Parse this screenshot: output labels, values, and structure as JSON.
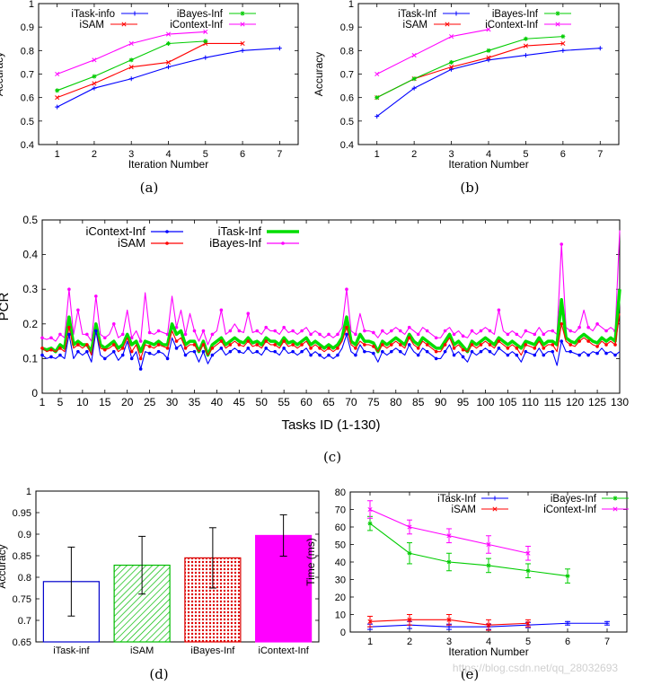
{
  "watermark": "https://blog.csdn.net/qq_28032693",
  "chart_data": [
    {
      "id": "a",
      "type": "line",
      "caption": "(a)",
      "xlabel": "Iteration Number",
      "ylabel": "Accuracy",
      "xlim": [
        0.5,
        7.5
      ],
      "ylim": [
        0.4,
        1.0
      ],
      "xticks": [
        1,
        2,
        3,
        4,
        5,
        6,
        7
      ],
      "yticks": [
        0.4,
        0.5,
        0.6,
        0.7,
        0.8,
        0.9,
        1
      ],
      "series": [
        {
          "name": "iTask-info",
          "color": "#0000ff",
          "x": [
            1,
            2,
            3,
            4,
            5,
            6,
            7
          ],
          "values": [
            0.56,
            0.64,
            0.68,
            0.73,
            0.77,
            0.8,
            0.81
          ]
        },
        {
          "name": "iSAM",
          "color": "#ff0000",
          "x": [
            1,
            2,
            3,
            4,
            5,
            6
          ],
          "values": [
            0.6,
            0.66,
            0.73,
            0.75,
            0.83,
            0.83
          ]
        },
        {
          "name": "iBayes-Inf",
          "color": "#00cc00",
          "x": [
            1,
            2,
            3,
            4,
            5
          ],
          "values": [
            0.63,
            0.69,
            0.76,
            0.83,
            0.84
          ]
        },
        {
          "name": "iContext-Inf",
          "color": "#ff00ff",
          "x": [
            1,
            2,
            3,
            4,
            5
          ],
          "values": [
            0.7,
            0.76,
            0.83,
            0.87,
            0.88
          ]
        }
      ]
    },
    {
      "id": "b",
      "type": "line",
      "caption": "(b)",
      "xlabel": "Iteration Number",
      "ylabel": "Accuracy",
      "xlim": [
        0.5,
        7.5
      ],
      "ylim": [
        0.4,
        1.0
      ],
      "xticks": [
        1,
        2,
        3,
        4,
        5,
        6,
        7
      ],
      "yticks": [
        0.4,
        0.5,
        0.6,
        0.7,
        0.8,
        0.9,
        1
      ],
      "series": [
        {
          "name": "iTask-Inf",
          "color": "#0000ff",
          "x": [
            1,
            2,
            3,
            4,
            5,
            6,
            7
          ],
          "values": [
            0.52,
            0.64,
            0.72,
            0.76,
            0.78,
            0.8,
            0.81
          ]
        },
        {
          "name": "iSAM",
          "color": "#ff0000",
          "x": [
            1,
            2,
            3,
            4,
            5,
            6
          ],
          "values": [
            0.6,
            0.68,
            0.73,
            0.77,
            0.82,
            0.83
          ]
        },
        {
          "name": "iBayes-Inf",
          "color": "#00cc00",
          "x": [
            1,
            2,
            3,
            4,
            5,
            6
          ],
          "values": [
            0.6,
            0.68,
            0.75,
            0.8,
            0.85,
            0.86
          ]
        },
        {
          "name": "iContext-Inf",
          "color": "#ff00ff",
          "x": [
            1,
            2,
            3,
            4
          ],
          "values": [
            0.7,
            0.78,
            0.86,
            0.89
          ]
        }
      ]
    },
    {
      "id": "c",
      "type": "line",
      "caption": "(c)",
      "xlabel": "Tasks ID (1-130)",
      "ylabel": "PCR",
      "xlim": [
        1,
        130
      ],
      "ylim": [
        0,
        0.5
      ],
      "xticks": [
        1,
        5,
        10,
        15,
        20,
        25,
        30,
        35,
        40,
        45,
        50,
        55,
        60,
        65,
        70,
        75,
        80,
        85,
        90,
        95,
        100,
        105,
        110,
        115,
        120,
        125,
        130
      ],
      "yticks": [
        0,
        0.1,
        0.2,
        0.3,
        0.4,
        0.5
      ],
      "series": [
        {
          "name": "iContext-Inf",
          "color": "#0000ff",
          "values": [
            0.11,
            0.1,
            0.105,
            0.1,
            0.11,
            0.1,
            0.17,
            0.1,
            0.12,
            0.11,
            0.12,
            0.09,
            0.18,
            0.11,
            0.1,
            0.11,
            0.12,
            0.095,
            0.11,
            0.15,
            0.1,
            0.12,
            0.07,
            0.12,
            0.115,
            0.11,
            0.12,
            0.115,
            0.1,
            0.16,
            0.13,
            0.14,
            0.11,
            0.12,
            0.12,
            0.09,
            0.12,
            0.085,
            0.11,
            0.12,
            0.13,
            0.11,
            0.12,
            0.13,
            0.12,
            0.115,
            0.13,
            0.115,
            0.12,
            0.11,
            0.13,
            0.12,
            0.12,
            0.11,
            0.13,
            0.115,
            0.12,
            0.11,
            0.12,
            0.13,
            0.11,
            0.12,
            0.11,
            0.1,
            0.11,
            0.1,
            0.11,
            0.13,
            0.17,
            0.12,
            0.11,
            0.14,
            0.12,
            0.12,
            0.115,
            0.09,
            0.12,
            0.11,
            0.12,
            0.13,
            0.12,
            0.11,
            0.14,
            0.12,
            0.11,
            0.13,
            0.12,
            0.11,
            0.1,
            0.1,
            0.12,
            0.14,
            0.11,
            0.12,
            0.105,
            0.09,
            0.12,
            0.11,
            0.12,
            0.13,
            0.12,
            0.11,
            0.13,
            0.12,
            0.11,
            0.12,
            0.11,
            0.09,
            0.12,
            0.115,
            0.11,
            0.13,
            0.11,
            0.12,
            0.12,
            0.08,
            0.15,
            0.12,
            0.12,
            0.115,
            0.11,
            0.12,
            0.11,
            0.12,
            0.115,
            0.13,
            0.115,
            0.12,
            0.11,
            0.12
          ]
        },
        {
          "name": "iSAM",
          "color": "#ff0000",
          "values": [
            0.13,
            0.12,
            0.125,
            0.12,
            0.13,
            0.12,
            0.19,
            0.13,
            0.14,
            0.13,
            0.14,
            0.11,
            0.18,
            0.13,
            0.125,
            0.13,
            0.14,
            0.12,
            0.13,
            0.16,
            0.12,
            0.14,
            0.1,
            0.14,
            0.135,
            0.13,
            0.14,
            0.135,
            0.13,
            0.18,
            0.15,
            0.16,
            0.13,
            0.14,
            0.14,
            0.12,
            0.14,
            0.11,
            0.13,
            0.14,
            0.15,
            0.13,
            0.14,
            0.15,
            0.14,
            0.135,
            0.15,
            0.135,
            0.14,
            0.13,
            0.15,
            0.14,
            0.14,
            0.13,
            0.15,
            0.135,
            0.14,
            0.13,
            0.14,
            0.15,
            0.13,
            0.14,
            0.13,
            0.12,
            0.13,
            0.12,
            0.13,
            0.15,
            0.19,
            0.14,
            0.13,
            0.15,
            0.14,
            0.14,
            0.135,
            0.12,
            0.14,
            0.13,
            0.14,
            0.15,
            0.14,
            0.13,
            0.16,
            0.14,
            0.13,
            0.15,
            0.14,
            0.13,
            0.12,
            0.12,
            0.14,
            0.16,
            0.13,
            0.14,
            0.125,
            0.12,
            0.14,
            0.13,
            0.14,
            0.15,
            0.14,
            0.13,
            0.15,
            0.14,
            0.13,
            0.14,
            0.13,
            0.11,
            0.14,
            0.135,
            0.13,
            0.15,
            0.13,
            0.14,
            0.14,
            0.12,
            0.2,
            0.15,
            0.14,
            0.135,
            0.15,
            0.16,
            0.15,
            0.14,
            0.135,
            0.15,
            0.14,
            0.15,
            0.14,
            0.23
          ]
        },
        {
          "name": "iTask-Inf",
          "color": "#00dd00",
          "values": [
            0.13,
            0.125,
            0.13,
            0.12,
            0.14,
            0.13,
            0.22,
            0.14,
            0.15,
            0.14,
            0.14,
            0.12,
            0.2,
            0.14,
            0.13,
            0.14,
            0.15,
            0.13,
            0.14,
            0.17,
            0.14,
            0.15,
            0.12,
            0.15,
            0.145,
            0.14,
            0.15,
            0.14,
            0.14,
            0.2,
            0.17,
            0.18,
            0.14,
            0.15,
            0.15,
            0.12,
            0.15,
            0.11,
            0.14,
            0.15,
            0.16,
            0.14,
            0.15,
            0.16,
            0.15,
            0.145,
            0.16,
            0.145,
            0.15,
            0.14,
            0.16,
            0.15,
            0.15,
            0.14,
            0.16,
            0.145,
            0.15,
            0.14,
            0.15,
            0.16,
            0.14,
            0.15,
            0.14,
            0.13,
            0.14,
            0.13,
            0.14,
            0.16,
            0.22,
            0.15,
            0.14,
            0.17,
            0.15,
            0.15,
            0.145,
            0.12,
            0.15,
            0.14,
            0.15,
            0.16,
            0.15,
            0.14,
            0.17,
            0.15,
            0.14,
            0.16,
            0.15,
            0.14,
            0.13,
            0.13,
            0.15,
            0.17,
            0.14,
            0.15,
            0.135,
            0.12,
            0.15,
            0.14,
            0.15,
            0.16,
            0.15,
            0.14,
            0.16,
            0.15,
            0.14,
            0.15,
            0.14,
            0.13,
            0.15,
            0.145,
            0.14,
            0.16,
            0.14,
            0.15,
            0.15,
            0.14,
            0.27,
            0.16,
            0.15,
            0.145,
            0.16,
            0.17,
            0.16,
            0.15,
            0.145,
            0.16,
            0.15,
            0.16,
            0.15,
            0.3
          ]
        },
        {
          "name": "iBayes-Inf",
          "color": "#ff00ff",
          "values": [
            0.16,
            0.155,
            0.16,
            0.15,
            0.17,
            0.16,
            0.3,
            0.17,
            0.24,
            0.17,
            0.17,
            0.15,
            0.28,
            0.17,
            0.16,
            0.17,
            0.2,
            0.16,
            0.17,
            0.24,
            0.16,
            0.18,
            0.15,
            0.29,
            0.175,
            0.17,
            0.18,
            0.175,
            0.17,
            0.28,
            0.19,
            0.24,
            0.17,
            0.23,
            0.18,
            0.15,
            0.18,
            0.14,
            0.17,
            0.18,
            0.24,
            0.17,
            0.18,
            0.2,
            0.18,
            0.175,
            0.23,
            0.175,
            0.18,
            0.17,
            0.19,
            0.18,
            0.18,
            0.17,
            0.19,
            0.175,
            0.18,
            0.17,
            0.18,
            0.19,
            0.17,
            0.18,
            0.17,
            0.16,
            0.17,
            0.16,
            0.17,
            0.19,
            0.3,
            0.18,
            0.17,
            0.23,
            0.18,
            0.18,
            0.175,
            0.16,
            0.18,
            0.17,
            0.18,
            0.19,
            0.18,
            0.17,
            0.19,
            0.18,
            0.17,
            0.19,
            0.18,
            0.17,
            0.16,
            0.16,
            0.18,
            0.19,
            0.17,
            0.18,
            0.165,
            0.16,
            0.18,
            0.17,
            0.18,
            0.19,
            0.18,
            0.17,
            0.24,
            0.18,
            0.17,
            0.18,
            0.17,
            0.16,
            0.18,
            0.175,
            0.17,
            0.19,
            0.17,
            0.18,
            0.18,
            0.17,
            0.43,
            0.19,
            0.18,
            0.175,
            0.19,
            0.24,
            0.19,
            0.18,
            0.2,
            0.19,
            0.18,
            0.19,
            0.18,
            0.47
          ]
        }
      ]
    },
    {
      "id": "d",
      "type": "bar",
      "caption": "(d)",
      "xlabel": "",
      "ylabel": "Accuracy",
      "ylim": [
        0.65,
        1.0
      ],
      "yticks": [
        0.65,
        0.7,
        0.75,
        0.8,
        0.85,
        0.9,
        0.95,
        1
      ],
      "categories": [
        "iTask-inf",
        "iSAM",
        "iBayes-Inf",
        "iContext-Inf"
      ],
      "values": [
        0.79,
        0.828,
        0.845,
        0.897
      ],
      "error": [
        0.08,
        0.067,
        0.07,
        0.048
      ],
      "colors": [
        "#0000cc",
        "#00bb00",
        "#dd0000",
        "#ff00ff"
      ],
      "patterns": [
        "none",
        "diagonal-hatch",
        "dots",
        "solid"
      ]
    },
    {
      "id": "e",
      "type": "line",
      "caption": "(e)",
      "xlabel": "Iteration Number",
      "ylabel": "Time (ms)",
      "xlim": [
        0.5,
        7.5
      ],
      "ylim": [
        0,
        80
      ],
      "xticks": [
        1,
        2,
        3,
        4,
        5,
        6,
        7
      ],
      "yticks": [
        0,
        10,
        20,
        30,
        40,
        50,
        60,
        70,
        80
      ],
      "series": [
        {
          "name": "iTask-Inf",
          "color": "#0000ff",
          "x": [
            1,
            2,
            3,
            4,
            5,
            6,
            7
          ],
          "values": [
            3,
            4,
            3,
            3,
            4,
            5,
            5
          ],
          "error": [
            1.5,
            2,
            1.5,
            1.5,
            1.5,
            1,
            1
          ]
        },
        {
          "name": "iSAM",
          "color": "#ff0000",
          "x": [
            1,
            2,
            3,
            4,
            5
          ],
          "values": [
            6,
            7,
            7,
            4,
            5
          ],
          "error": [
            3,
            3,
            3,
            3,
            2
          ]
        },
        {
          "name": "iBayes-Inf",
          "color": "#00cc00",
          "x": [
            1,
            2,
            3,
            4,
            5,
            6
          ],
          "values": [
            62,
            45,
            40,
            38,
            35,
            32
          ],
          "error": [
            4,
            6,
            5,
            4,
            4,
            4
          ]
        },
        {
          "name": "iContext-Inf",
          "color": "#ff00ff",
          "x": [
            1,
            2,
            3,
            4,
            5
          ],
          "values": [
            70,
            60,
            55,
            50,
            45
          ],
          "error": [
            5,
            4,
            4,
            5,
            4
          ]
        }
      ]
    }
  ]
}
